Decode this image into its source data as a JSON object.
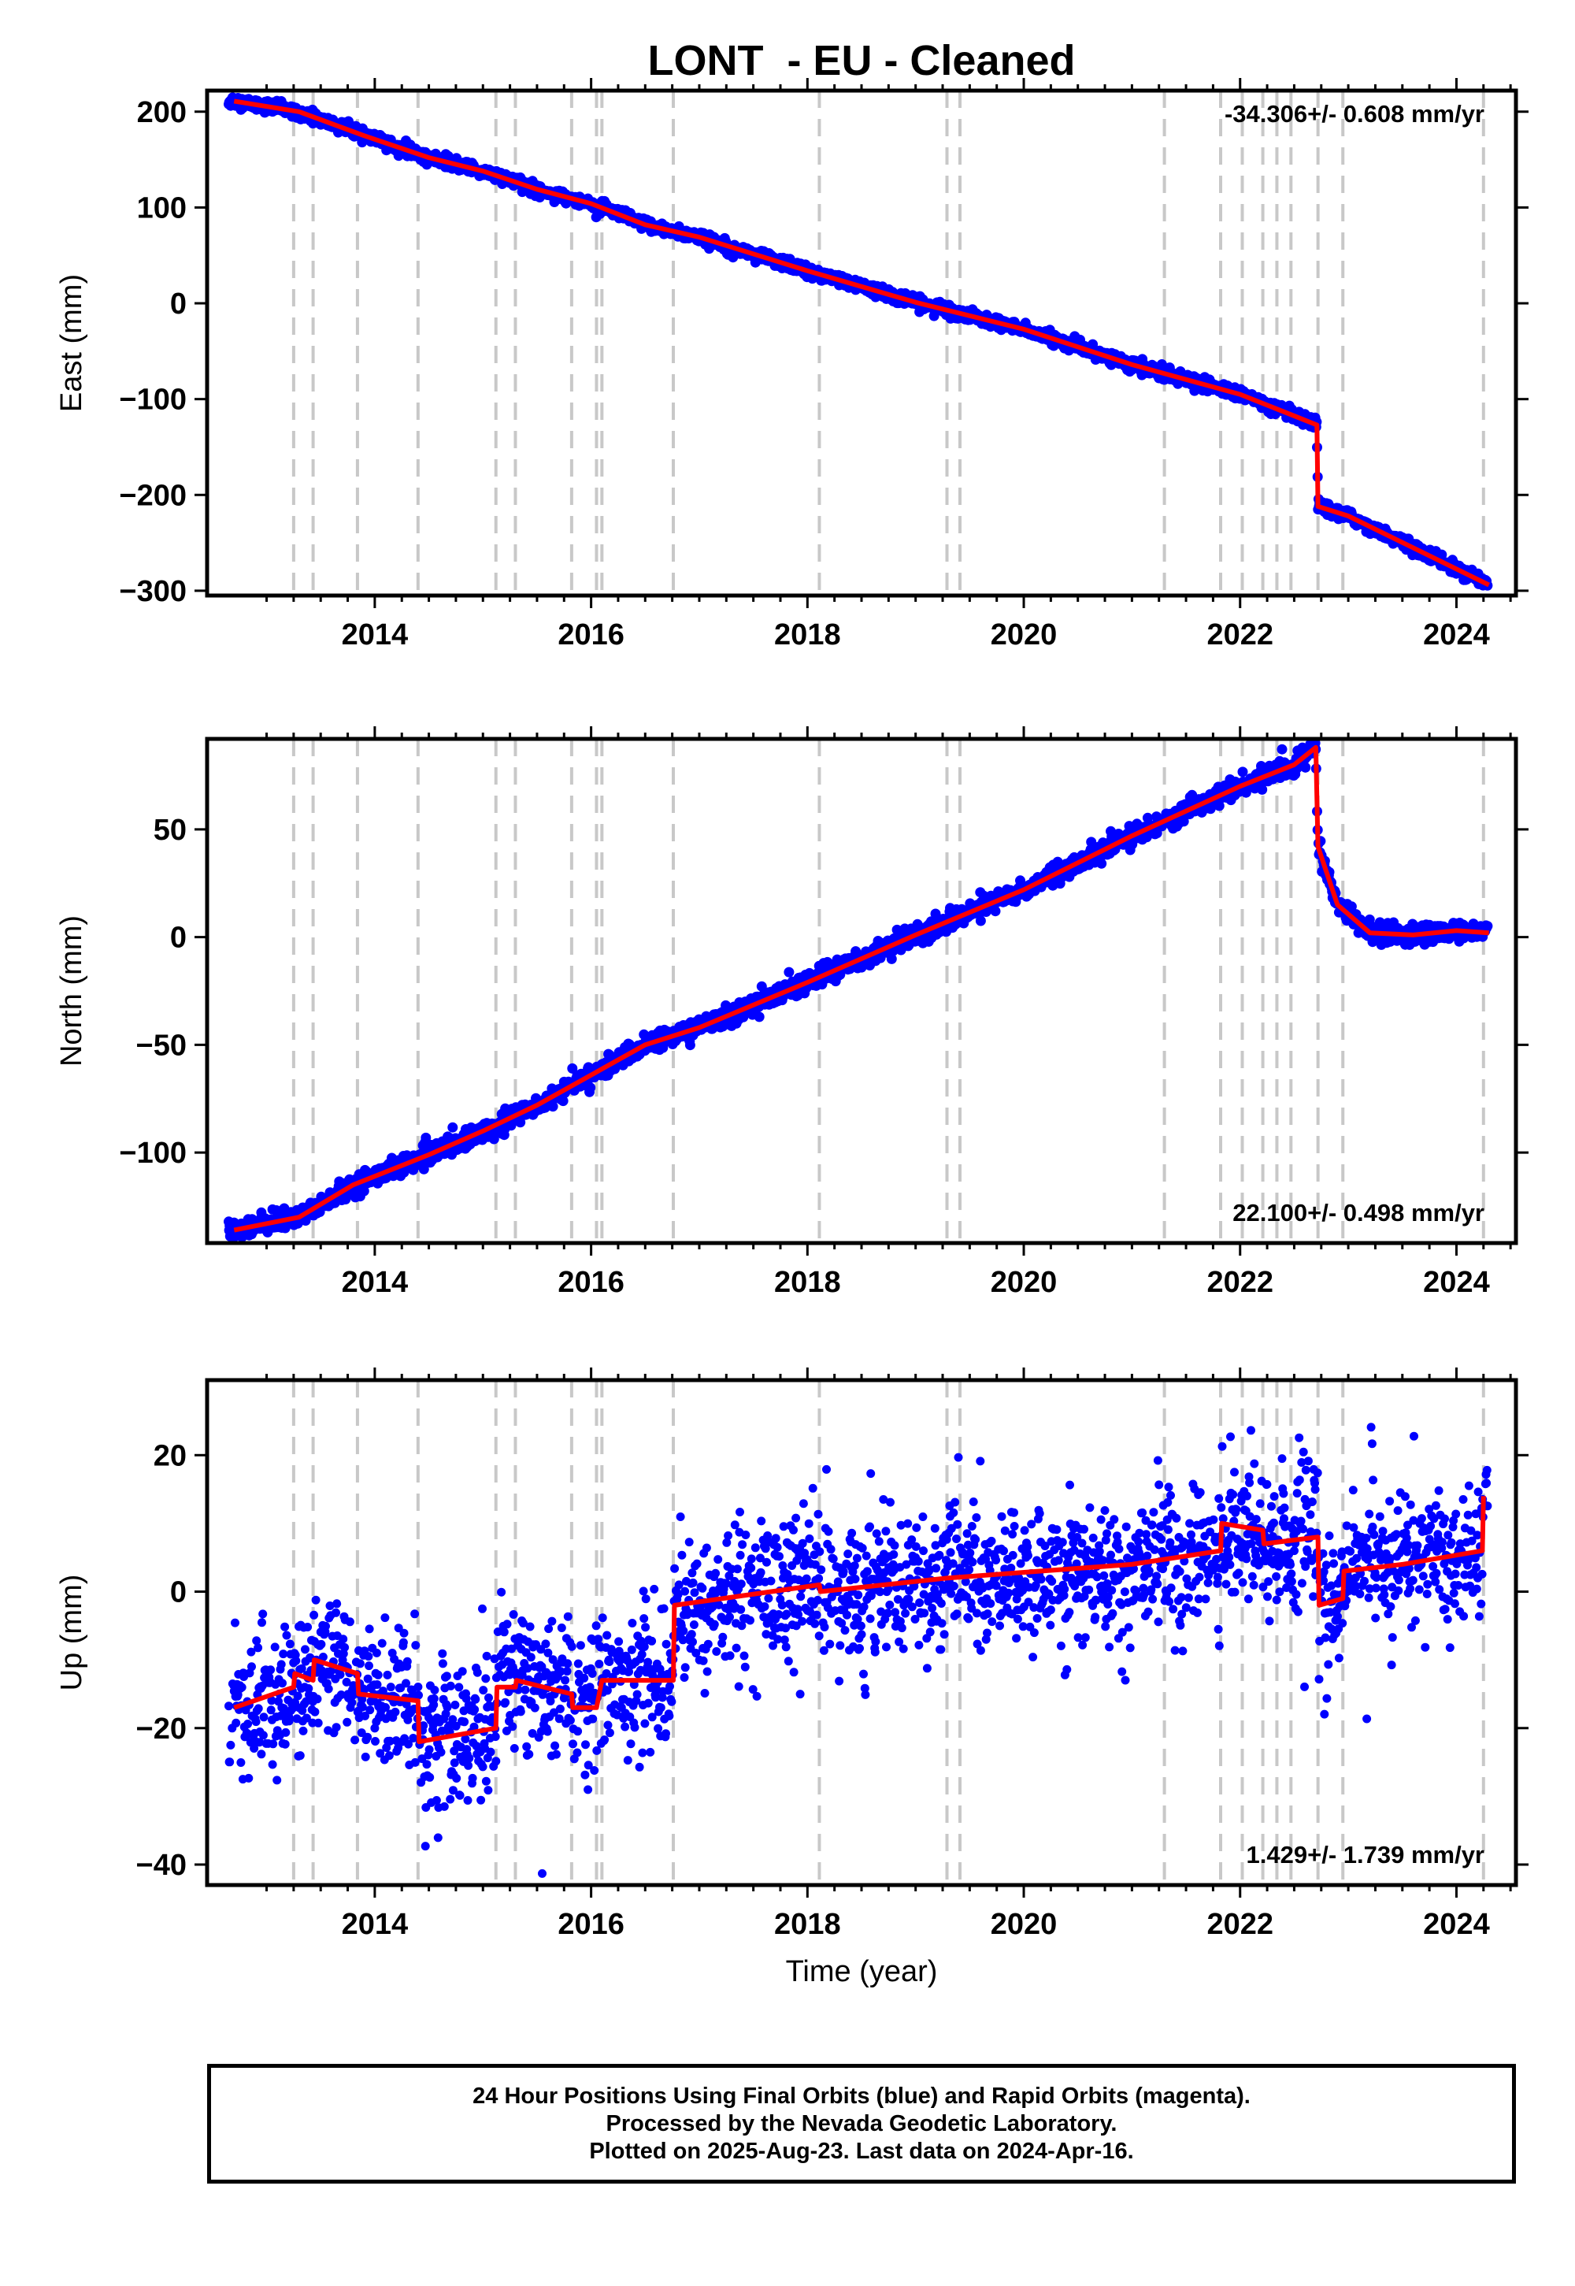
{
  "title": "LONT  - EU - Cleaned",
  "xlabel": "Time (year)",
  "colors": {
    "data": "#0000ff",
    "model": "#ff0000",
    "event_line": "#c8c8c8",
    "axes": "#000000"
  },
  "footer": {
    "line1": "24 Hour Positions Using Final Orbits (blue) and Rapid Orbits (magenta).",
    "line2": "Processed by the Nevada Geodetic Laboratory.",
    "line3": "Plotted on 2025-Aug-23. Last data on 2024-Apr-16."
  },
  "chart_data": [
    {
      "type": "scatter",
      "name": "east",
      "ylabel": "East (mm)",
      "rate_label": "-34.306+/- 0.608 mm/yr",
      "rate_position": "top-right",
      "xlim": [
        2012.45,
        2024.55
      ],
      "ylim": [
        -305,
        222
      ],
      "x_ticks": [
        2014,
        2016,
        2018,
        2020,
        2022,
        2024
      ],
      "y_ticks": [
        200,
        100,
        0,
        -100,
        -200,
        -300
      ],
      "y_tick_labels": [
        "200",
        "100",
        "0",
        "−100",
        "−200",
        "−300"
      ],
      "event_lines": [
        2013.25,
        2013.43,
        2013.84,
        2014.4,
        2015.12,
        2015.3,
        2015.82,
        2016.05,
        2016.1,
        2016.76,
        2018.11,
        2019.29,
        2019.41,
        2021.3,
        2021.82,
        2022.02,
        2022.21,
        2022.34,
        2022.47,
        2022.72,
        2022.95,
        2024.25
      ],
      "trend_knots": {
        "x": [
          2012.7,
          2013.3,
          2013.9,
          2014.5,
          2015.0,
          2015.5,
          2016.0,
          2016.5,
          2017.0,
          2018.0,
          2019.0,
          2020.0,
          2021.0,
          2022.0,
          2022.71,
          2022.72,
          2023.0,
          2024.3
        ],
        "y": [
          211,
          200,
          175,
          152,
          138,
          119,
          104,
          82,
          69,
          34,
          1,
          -27,
          -64,
          -95,
          -127,
          -212,
          -222,
          -294
        ]
      },
      "offsets": [
        {
          "x": 2022.72,
          "dy": -85
        }
      ],
      "noise_mm": 3.0
    },
    {
      "type": "scatter",
      "name": "north",
      "ylabel": "North (mm)",
      "rate_label": "22.100+/- 0.498 mm/yr",
      "rate_position": "bottom-right",
      "xlim": [
        2012.45,
        2024.55
      ],
      "ylim": [
        -142,
        92
      ],
      "x_ticks": [
        2014,
        2016,
        2018,
        2020,
        2022,
        2024
      ],
      "y_ticks": [
        50,
        0,
        -50,
        -100
      ],
      "y_tick_labels": [
        "50",
        "0",
        "−50",
        "−100"
      ],
      "event_lines": [
        2013.25,
        2013.43,
        2013.84,
        2014.4,
        2015.12,
        2015.3,
        2015.82,
        2016.05,
        2016.1,
        2016.76,
        2018.11,
        2019.29,
        2019.41,
        2021.3,
        2021.82,
        2022.02,
        2022.21,
        2022.34,
        2022.47,
        2022.72,
        2022.95,
        2024.25
      ],
      "trend_knots": {
        "x": [
          2012.7,
          2013.3,
          2013.8,
          2014.5,
          2015.0,
          2015.5,
          2016.0,
          2016.5,
          2017.0,
          2018.0,
          2019.0,
          2020.0,
          2021.0,
          2022.0,
          2022.5,
          2022.7,
          2022.72,
          2022.9,
          2023.2,
          2023.6,
          2024.0,
          2024.3
        ],
        "y": [
          -136,
          -130,
          -115,
          -101,
          -90,
          -78,
          -64,
          -50,
          -42,
          -21,
          1,
          22,
          47,
          70,
          80,
          88,
          42,
          15,
          2,
          1,
          3,
          2
        ]
      },
      "offsets": [],
      "noise_mm": 2.2
    },
    {
      "type": "scatter",
      "name": "up",
      "ylabel": "Up (mm)",
      "rate_label": "1.429+/- 1.739 mm/yr",
      "rate_position": "bottom-right",
      "xlim": [
        2012.45,
        2024.55
      ],
      "ylim": [
        -43,
        31
      ],
      "x_ticks": [
        2014,
        2016,
        2018,
        2020,
        2022,
        2024
      ],
      "y_ticks": [
        20,
        0,
        -20,
        -40
      ],
      "y_tick_labels": [
        "20",
        "0",
        "−20",
        "−40"
      ],
      "event_lines": [
        2013.25,
        2013.43,
        2013.84,
        2014.4,
        2015.12,
        2015.3,
        2015.82,
        2016.05,
        2016.1,
        2016.76,
        2018.11,
        2019.29,
        2019.41,
        2021.3,
        2021.82,
        2022.02,
        2022.21,
        2022.34,
        2022.47,
        2022.72,
        2022.95,
        2024.25
      ],
      "trend_knots": {
        "x": [
          2012.7,
          2013.25,
          2013.26,
          2013.43,
          2013.44,
          2013.84,
          2013.85,
          2014.4,
          2014.41,
          2015.12,
          2015.13,
          2015.3,
          2015.31,
          2015.82,
          2015.83,
          2016.05,
          2016.1,
          2016.76,
          2016.77,
          2018.11,
          2018.12,
          2019.3,
          2021.0,
          2021.82,
          2021.83,
          2022.21,
          2022.22,
          2022.72,
          2022.73,
          2022.95,
          2022.96,
          2023.5,
          2024.24,
          2024.25
        ],
        "y": [
          -17,
          -14,
          -12,
          -13,
          -10,
          -12,
          -15,
          -16,
          -22,
          -20,
          -14,
          -14,
          -13,
          -15,
          -17,
          -17,
          -13,
          -13,
          -2,
          1,
          0,
          2,
          4,
          6,
          10,
          9,
          7,
          8,
          -2,
          -1,
          3,
          4,
          6,
          14
        ]
      },
      "offsets": [],
      "noise_mm": 5.0
    }
  ]
}
